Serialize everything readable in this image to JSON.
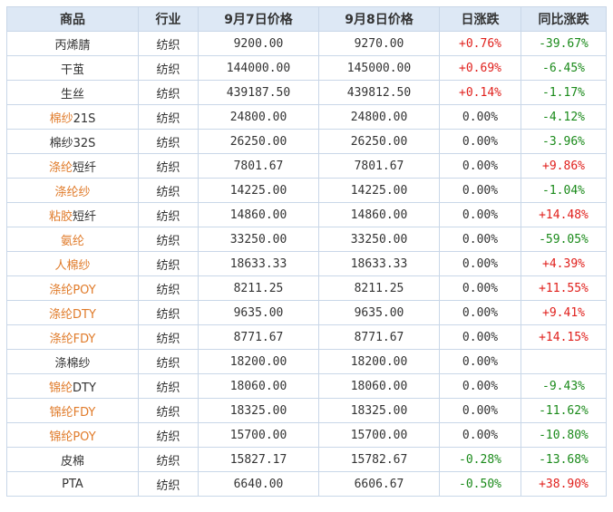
{
  "headers": [
    "商品",
    "行业",
    "9月7日价格",
    "9月8日价格",
    "日涨跌",
    "同比涨跌"
  ],
  "colors": {
    "orange_link": "#e07b2a",
    "up": "#e0201c",
    "down": "#1a8a1a",
    "header_bg": "#dde8f5",
    "border": "#c9d7e8"
  },
  "rows": [
    {
      "name_link": "",
      "name_rest": "丙烯腈",
      "industry": "纺织",
      "p1": "9200.00",
      "p2": "9270.00",
      "day": "+0.76%",
      "yoy": "-39.67%"
    },
    {
      "name_link": "",
      "name_rest": "干茧",
      "industry": "纺织",
      "p1": "144000.00",
      "p2": "145000.00",
      "day": "+0.69%",
      "yoy": "-6.45%"
    },
    {
      "name_link": "",
      "name_rest": "生丝",
      "industry": "纺织",
      "p1": "439187.50",
      "p2": "439812.50",
      "day": "+0.14%",
      "yoy": "-1.17%"
    },
    {
      "name_link": "棉纱",
      "name_rest": "21S",
      "industry": "纺织",
      "p1": "24800.00",
      "p2": "24800.00",
      "day": "0.00%",
      "yoy": "-4.12%"
    },
    {
      "name_link": "",
      "name_rest": "棉纱32S",
      "industry": "纺织",
      "p1": "26250.00",
      "p2": "26250.00",
      "day": "0.00%",
      "yoy": "-3.96%"
    },
    {
      "name_link": "涤纶",
      "name_rest": "短纤",
      "industry": "纺织",
      "p1": "7801.67",
      "p2": "7801.67",
      "day": "0.00%",
      "yoy": "+9.86%"
    },
    {
      "name_link": "涤纶纱",
      "name_rest": "",
      "industry": "纺织",
      "p1": "14225.00",
      "p2": "14225.00",
      "day": "0.00%",
      "yoy": "-1.04%"
    },
    {
      "name_link": "粘胶",
      "name_rest": "短纤",
      "industry": "纺织",
      "p1": "14860.00",
      "p2": "14860.00",
      "day": "0.00%",
      "yoy": "+14.48%"
    },
    {
      "name_link": "氨纶",
      "name_rest": "",
      "industry": "纺织",
      "p1": "33250.00",
      "p2": "33250.00",
      "day": "0.00%",
      "yoy": "-59.05%"
    },
    {
      "name_link": "人棉纱",
      "name_rest": "",
      "industry": "纺织",
      "p1": "18633.33",
      "p2": "18633.33",
      "day": "0.00%",
      "yoy": "+4.39%"
    },
    {
      "name_link": "涤纶POY",
      "name_rest": "",
      "industry": "纺织",
      "p1": "8211.25",
      "p2": "8211.25",
      "day": "0.00%",
      "yoy": "+11.55%"
    },
    {
      "name_link": "涤纶DTY",
      "name_rest": "",
      "industry": "纺织",
      "p1": "9635.00",
      "p2": "9635.00",
      "day": "0.00%",
      "yoy": "+9.41%"
    },
    {
      "name_link": "涤纶FDY",
      "name_rest": "",
      "industry": "纺织",
      "p1": "8771.67",
      "p2": "8771.67",
      "day": "0.00%",
      "yoy": "+14.15%"
    },
    {
      "name_link": "",
      "name_rest": "涤棉纱",
      "industry": "纺织",
      "p1": "18200.00",
      "p2": "18200.00",
      "day": "0.00%",
      "yoy": ""
    },
    {
      "name_link": "锦纶",
      "name_rest": "DTY",
      "industry": "纺织",
      "p1": "18060.00",
      "p2": "18060.00",
      "day": "0.00%",
      "yoy": "-9.43%"
    },
    {
      "name_link": "锦纶FDY",
      "name_rest": "",
      "industry": "纺织",
      "p1": "18325.00",
      "p2": "18325.00",
      "day": "0.00%",
      "yoy": "-11.62%"
    },
    {
      "name_link": "锦纶POY",
      "name_rest": "",
      "industry": "纺织",
      "p1": "15700.00",
      "p2": "15700.00",
      "day": "0.00%",
      "yoy": "-10.80%"
    },
    {
      "name_link": "",
      "name_rest": "皮棉",
      "industry": "纺织",
      "p1": "15827.17",
      "p2": "15782.67",
      "day": "-0.28%",
      "yoy": "-13.68%"
    },
    {
      "name_link": "",
      "name_rest": "PTA",
      "industry": "纺织",
      "p1": "6640.00",
      "p2": "6606.67",
      "day": "-0.50%",
      "yoy": "+38.90%"
    }
  ]
}
